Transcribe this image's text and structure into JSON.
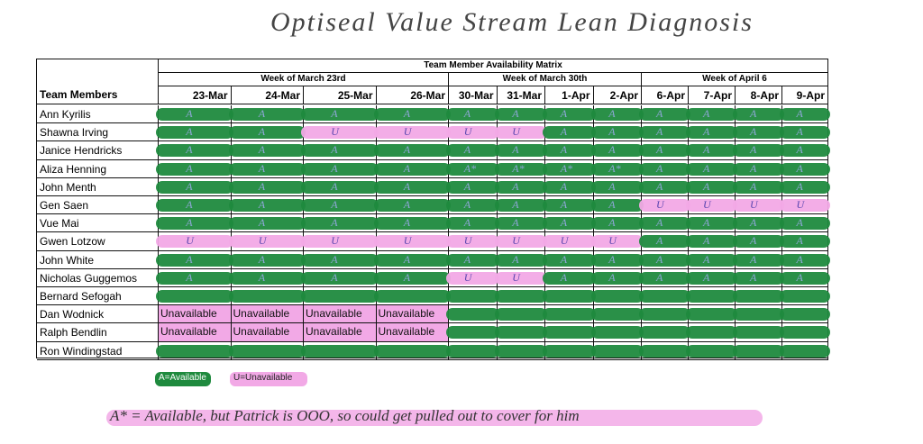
{
  "title": "Optiseal Value Stream Lean Diagnosis",
  "table": {
    "title": "Team Member Availability Matrix",
    "member_header": "Team Members",
    "weeks": [
      {
        "label": "Week of March 23rd",
        "span": 4
      },
      {
        "label": "Week of March 30th",
        "span": 4
      },
      {
        "label": "Week of April 6",
        "span": 4
      }
    ],
    "columns": [
      "23-Mar",
      "24-Mar",
      "25-Mar",
      "26-Mar",
      "30-Mar",
      "31-Mar",
      "1-Apr",
      "2-Apr",
      "6-Apr",
      "7-Apr",
      "8-Apr",
      "9-Apr"
    ],
    "rows": [
      {
        "name": "Ann Kyrilis",
        "cells": [
          "A",
          "A",
          "A",
          "A",
          "A",
          "A",
          "A",
          "A",
          "A",
          "A",
          "A",
          "A"
        ]
      },
      {
        "name": "Shawna Irving",
        "cells": [
          "A",
          "A",
          "U",
          "U",
          "U",
          "U",
          "A",
          "A",
          "A",
          "A",
          "A",
          "A"
        ]
      },
      {
        "name": "Janice Hendricks",
        "cells": [
          "A",
          "A",
          "A",
          "A",
          "A",
          "A",
          "A",
          "A",
          "A",
          "A",
          "A",
          "A"
        ]
      },
      {
        "name": "Aliza Henning",
        "cells": [
          "A",
          "A",
          "A",
          "A",
          "A*",
          "A*",
          "A*",
          "A*",
          "A",
          "A",
          "A",
          "A"
        ]
      },
      {
        "name": "John Menth",
        "cells": [
          "A",
          "A",
          "A",
          "A",
          "A",
          "A",
          "A",
          "A",
          "A",
          "A",
          "A",
          "A"
        ]
      },
      {
        "name": "Gen Saen",
        "cells": [
          "A",
          "A",
          "A",
          "A",
          "A",
          "A",
          "A",
          "A",
          "U",
          "U",
          "U",
          "U"
        ]
      },
      {
        "name": "Vue Mai",
        "cells": [
          "A",
          "A",
          "A",
          "A",
          "A",
          "A",
          "A",
          "A",
          "A",
          "A",
          "A",
          "A"
        ]
      },
      {
        "name": "Gwen Lotzow",
        "cells": [
          "U",
          "U",
          "U",
          "U",
          "U",
          "U",
          "U",
          "U",
          "A",
          "A",
          "A",
          "A"
        ]
      },
      {
        "name": "John White",
        "cells": [
          "A",
          "A",
          "A",
          "A",
          "A",
          "A",
          "A",
          "A",
          "A",
          "A",
          "A",
          "A"
        ]
      },
      {
        "name": "Nicholas Guggemos",
        "cells": [
          "A",
          "A",
          "A",
          "A",
          "U",
          "U",
          "A",
          "A",
          "A",
          "A",
          "A",
          "A"
        ]
      },
      {
        "name": "Bernard Sefogah",
        "cells": [
          null,
          null,
          null,
          null,
          null,
          null,
          null,
          null,
          null,
          null,
          null,
          null
        ]
      },
      {
        "name": "Dan Wodnick",
        "cells": [
          "Unavailable",
          "Unavailable",
          "Unavailable",
          "Unavailable",
          null,
          null,
          null,
          null,
          null,
          null,
          null,
          null
        ]
      },
      {
        "name": "Ralph Bendlin",
        "cells": [
          "Unavailable",
          "Unavailable",
          "Unavailable",
          "Unavailable",
          null,
          null,
          null,
          null,
          null,
          null,
          null,
          null
        ]
      },
      {
        "name": "Ron Windingstad",
        "cells": [
          null,
          null,
          null,
          null,
          null,
          null,
          null,
          null,
          null,
          null,
          null,
          null
        ]
      }
    ]
  },
  "legend": [
    "A=Available",
    "U=Unavailable"
  ],
  "footnote": "A* = Available, but Patrick is OOO, so could get pulled out to cover for him"
}
